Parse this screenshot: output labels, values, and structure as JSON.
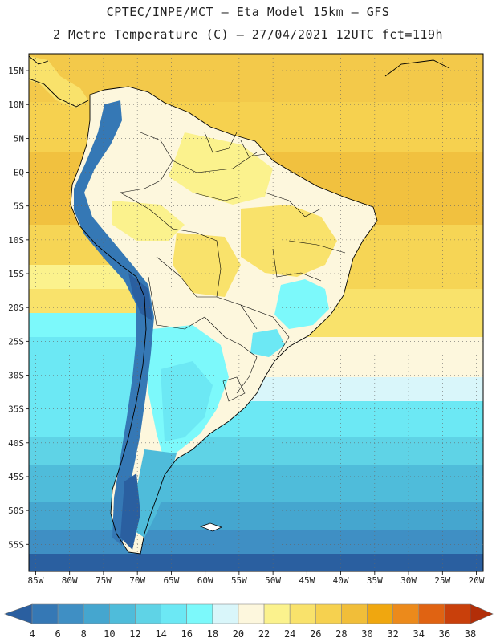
{
  "header": {
    "line1": "CPTEC/INPE/MCT –  Eta Model 15km – GFS",
    "line2": "2 Metre Temperature (C) – 27/04/2021 12UTC fct=119h"
  },
  "map": {
    "lon_range": [
      -86,
      -19
    ],
    "lat_range": [
      17.5,
      -59
    ],
    "lon_ticks": [
      "85W",
      "80W",
      "75W",
      "70W",
      "65W",
      "60W",
      "55W",
      "50W",
      "45W",
      "40W",
      "35W",
      "30W",
      "25W",
      "20W"
    ],
    "lon_tick_values": [
      -85,
      -80,
      -75,
      -70,
      -65,
      -60,
      -55,
      -50,
      -45,
      -40,
      -35,
      -30,
      -25,
      -20
    ],
    "lat_ticks": [
      "15N",
      "10N",
      "5N",
      "EQ",
      "5S",
      "10S",
      "15S",
      "20S",
      "25S",
      "30S",
      "35S",
      "40S",
      "45S",
      "50S",
      "55S"
    ],
    "lat_tick_values": [
      15,
      10,
      5,
      0,
      -5,
      -10,
      -15,
      -20,
      -25,
      -30,
      -35,
      -40,
      -45,
      -50,
      -55
    ],
    "grid": true
  },
  "colorbar": {
    "labels": [
      "4",
      "6",
      "8",
      "10",
      "12",
      "14",
      "16",
      "18",
      "20",
      "22",
      "24",
      "26",
      "28",
      "30",
      "32",
      "34",
      "36",
      "38"
    ],
    "colors": [
      "#2a5fa0",
      "#3578b5",
      "#3f8fc4",
      "#45a6cf",
      "#4fbcda",
      "#5fd3e6",
      "#6ce8f4",
      "#7cf9fb",
      "#d9f6fa",
      "#fdf7dd",
      "#fbf28d",
      "#f9e26b",
      "#f6d14f",
      "#f1be39",
      "#f0a70f",
      "#ec8a1b",
      "#e06312",
      "#c9400b",
      "#b22e08"
    ]
  }
}
